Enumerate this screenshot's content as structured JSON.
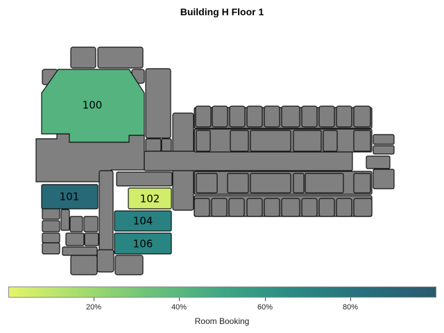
{
  "title": "Building H Floor 1",
  "colorbar": {
    "label": "Room Booking",
    "ticks": [
      "20%",
      "40%",
      "60%",
      "80%"
    ],
    "tick_values": [
      0.2,
      0.4,
      0.6,
      0.8
    ],
    "range": [
      0.0,
      1.0
    ],
    "colors": [
      "#e4f46a",
      "#a6dc6e",
      "#6bc27a",
      "#3fa684",
      "#2a8a84",
      "#276f7c",
      "#2b5a6e"
    ]
  },
  "rooms": [
    {
      "id": "100",
      "label": "100",
      "booking": 0.42
    },
    {
      "id": "101",
      "label": "101",
      "booking": 0.88
    },
    {
      "id": "102",
      "label": "102",
      "booking": 0.05
    },
    {
      "id": "104",
      "label": "104",
      "booking": 0.72
    },
    {
      "id": "106",
      "label": "106",
      "booking": 0.7
    }
  ],
  "other_space_color": "#808080"
}
